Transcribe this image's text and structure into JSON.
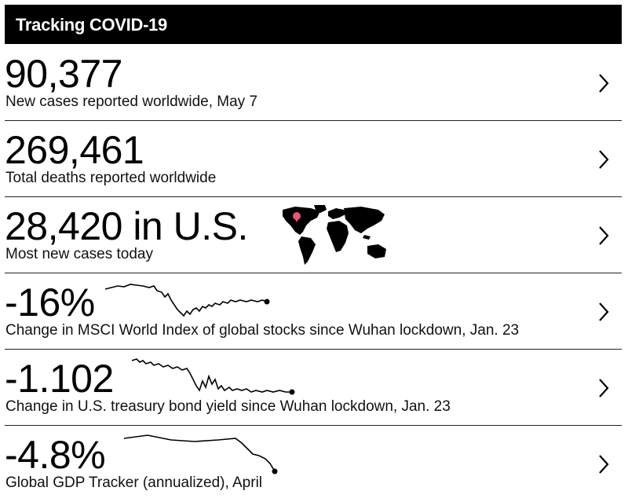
{
  "header": {
    "title": "Tracking COVID-19"
  },
  "rows": [
    {
      "value": "90,377",
      "caption": "New cases reported worldwide, May 7"
    },
    {
      "value": "269,461",
      "caption": "Total deaths reported worldwide"
    },
    {
      "value": "28,420 in U.S.",
      "caption": "Most new cases today",
      "map_icon": "world-map-icon",
      "highlight_color": "#e8557a"
    },
    {
      "value": "-16%",
      "caption": "Change in MSCI World Index of global stocks since Wuhan lockdown, Jan. 23",
      "icon": "sparkline-icon"
    },
    {
      "value": "-1.102",
      "caption": "Change in U.S. treasury bond yield since Wuhan lockdown, Jan. 23",
      "icon": "sparkline-icon"
    },
    {
      "value": "-4.8%",
      "caption": "Global GDP Tracker (annualized), April",
      "icon": "sparkline-icon"
    }
  ],
  "colors": {
    "header_bg": "#000000",
    "text": "#000000"
  }
}
